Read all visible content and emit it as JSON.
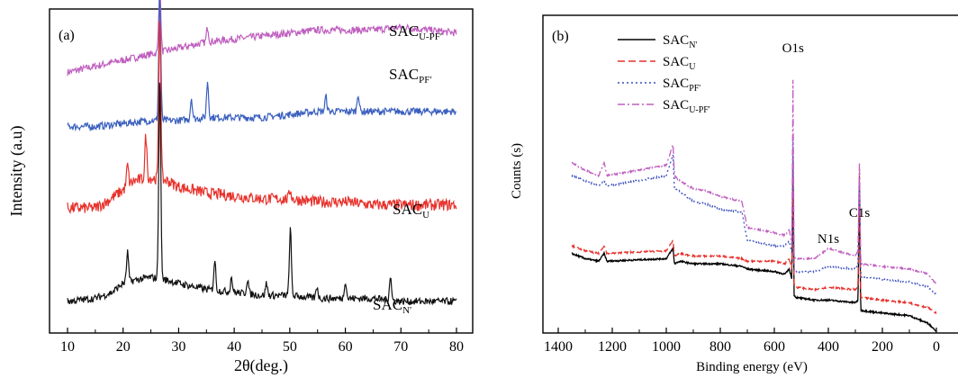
{
  "chart_data": [
    {
      "panel": "(a)",
      "type": "line",
      "xlabel": "2θ(deg.)",
      "ylabel": "Intensity (a.u)",
      "xlim": [
        10,
        80
      ],
      "xticks": [
        "10",
        "20",
        "30",
        "40",
        "50",
        "60",
        "70",
        "80"
      ],
      "y_ticks_shown": false,
      "series": [
        {
          "name": "SAC",
          "name_sub": "U-PF′",
          "color": "#bf5fbf",
          "baseline": 0.82,
          "x": [
            10,
            15,
            20,
            25,
            30,
            35,
            40,
            45,
            50,
            55,
            60,
            65,
            70,
            75,
            80
          ],
          "y": [
            0.82,
            0.84,
            0.86,
            0.88,
            0.9,
            0.92,
            0.93,
            0.94,
            0.95,
            0.96,
            0.96,
            0.96,
            0.97,
            0.96,
            0.95
          ],
          "peaks": [
            [
              26.6,
              0.23
            ],
            [
              35.2,
              0.05
            ]
          ]
        },
        {
          "name": "SAC",
          "name_sub": "PF′",
          "color": "#3a5fbf",
          "baseline": 0.64,
          "x": [
            10,
            15,
            20,
            25,
            30,
            35,
            40,
            45,
            50,
            55,
            60,
            65,
            70,
            75,
            80
          ],
          "y": [
            0.64,
            0.64,
            0.65,
            0.66,
            0.66,
            0.67,
            0.67,
            0.67,
            0.68,
            0.69,
            0.69,
            0.69,
            0.69,
            0.69,
            0.69
          ],
          "peaks": [
            [
              26.6,
              0.42
            ],
            [
              32.3,
              0.07
            ],
            [
              35.2,
              0.12
            ],
            [
              56.5,
              0.05
            ],
            [
              62.3,
              0.06
            ]
          ]
        },
        {
          "name": "SAC",
          "name_sub": "U",
          "color": "#e8312b",
          "baseline": 0.38,
          "x": [
            10,
            15,
            17,
            20,
            22,
            25,
            28,
            30,
            35,
            40,
            45,
            50,
            55,
            60,
            65,
            70,
            75,
            80
          ],
          "y": [
            0.37,
            0.37,
            0.39,
            0.43,
            0.46,
            0.47,
            0.46,
            0.44,
            0.42,
            0.41,
            0.4,
            0.4,
            0.39,
            0.39,
            0.38,
            0.38,
            0.38,
            0.38
          ],
          "peaks": [
            [
              20.8,
              0.07
            ],
            [
              24.1,
              0.14
            ],
            [
              26.6,
              0.55
            ],
            [
              50.1,
              0.03
            ]
          ]
        },
        {
          "name": "SAC",
          "name_sub": "N′",
          "color": "#111111",
          "baseline": 0.06,
          "x": [
            10,
            15,
            18,
            20,
            22,
            25,
            28,
            30,
            35,
            40,
            45,
            50,
            55,
            60,
            65,
            70,
            75,
            80
          ],
          "y": [
            0.06,
            0.07,
            0.09,
            0.12,
            0.13,
            0.14,
            0.13,
            0.12,
            0.1,
            0.09,
            0.08,
            0.08,
            0.07,
            0.07,
            0.07,
            0.06,
            0.06,
            0.06
          ],
          "peaks": [
            [
              20.8,
              0.1
            ],
            [
              26.6,
              0.67
            ],
            [
              36.5,
              0.1
            ],
            [
              39.5,
              0.05
            ],
            [
              42.4,
              0.05
            ],
            [
              45.8,
              0.04
            ],
            [
              50.1,
              0.22
            ],
            [
              54.9,
              0.04
            ],
            [
              60.0,
              0.06
            ],
            [
              68.1,
              0.08
            ]
          ]
        }
      ]
    },
    {
      "panel": "(b)",
      "type": "line",
      "xlabel": "Binding energy (eV)",
      "ylabel": "Counts (s)",
      "xlim": [
        1400,
        0
      ],
      "xticks": [
        "1400",
        "1200",
        "1000",
        "800",
        "600",
        "400",
        "200",
        "0"
      ],
      "y_ticks_shown": false,
      "legend_position": "top-left",
      "annotations": [
        {
          "text": "O1s",
          "x": 531
        },
        {
          "text": "N1s",
          "x": 400
        },
        {
          "text": "C1s",
          "x": 285
        }
      ],
      "series": [
        {
          "name": "SAC",
          "name_sub": "N'",
          "color": "#000000",
          "dash": "solid",
          "x": [
            1350,
            1300,
            1250,
            1230,
            1220,
            1000,
            975,
            970,
            950,
            900,
            850,
            800,
            720,
            700,
            600,
            560,
            545,
            535,
            531,
            527,
            520,
            450,
            400,
            300,
            290,
            285,
            280,
            200,
            100,
            30,
            0
          ],
          "y": [
            0.3,
            0.28,
            0.27,
            0.3,
            0.27,
            0.28,
            0.32,
            0.26,
            0.27,
            0.26,
            0.26,
            0.26,
            0.25,
            0.24,
            0.23,
            0.22,
            0.24,
            0.2,
            0.65,
            0.14,
            0.13,
            0.12,
            0.12,
            0.11,
            0.12,
            0.55,
            0.08,
            0.07,
            0.06,
            0.03,
            0.0
          ]
        },
        {
          "name": "SAC",
          "name_sub": "U",
          "color": "#e8312b",
          "dash": "dashed",
          "x": [
            1350,
            1300,
            1250,
            1230,
            1220,
            1000,
            975,
            970,
            950,
            900,
            850,
            800,
            720,
            700,
            600,
            560,
            545,
            535,
            531,
            527,
            520,
            450,
            400,
            300,
            290,
            285,
            280,
            200,
            100,
            30,
            0
          ],
          "y": [
            0.33,
            0.31,
            0.3,
            0.33,
            0.3,
            0.31,
            0.35,
            0.29,
            0.3,
            0.29,
            0.29,
            0.29,
            0.28,
            0.27,
            0.27,
            0.26,
            0.28,
            0.24,
            0.68,
            0.18,
            0.17,
            0.16,
            0.17,
            0.16,
            0.17,
            0.6,
            0.13,
            0.12,
            0.11,
            0.09,
            0.07
          ]
        },
        {
          "name": "SAC",
          "name_sub": "PF'",
          "color": "#3a4fbf",
          "dash": "dotted",
          "x": [
            1350,
            1300,
            1250,
            1230,
            1220,
            1000,
            975,
            970,
            950,
            900,
            850,
            800,
            720,
            700,
            600,
            560,
            545,
            535,
            531,
            527,
            520,
            450,
            400,
            300,
            290,
            285,
            280,
            200,
            100,
            30,
            0
          ],
          "y": [
            0.6,
            0.58,
            0.56,
            0.58,
            0.56,
            0.6,
            0.68,
            0.55,
            0.54,
            0.5,
            0.49,
            0.47,
            0.46,
            0.35,
            0.33,
            0.33,
            0.35,
            0.3,
            0.75,
            0.24,
            0.23,
            0.23,
            0.25,
            0.24,
            0.26,
            0.62,
            0.21,
            0.2,
            0.19,
            0.17,
            0.14
          ]
        },
        {
          "name": "SAC",
          "name_sub": "U-PF'",
          "color": "#bf5fbf",
          "dash": "dashdot",
          "x": [
            1350,
            1300,
            1250,
            1230,
            1220,
            1000,
            975,
            970,
            950,
            900,
            850,
            800,
            720,
            700,
            600,
            560,
            545,
            535,
            531,
            527,
            520,
            450,
            400,
            300,
            290,
            285,
            280,
            200,
            100,
            30,
            0
          ],
          "y": [
            0.65,
            0.62,
            0.6,
            0.65,
            0.6,
            0.64,
            0.72,
            0.6,
            0.58,
            0.55,
            0.54,
            0.52,
            0.5,
            0.4,
            0.38,
            0.37,
            0.39,
            0.34,
            0.97,
            0.29,
            0.28,
            0.28,
            0.32,
            0.29,
            0.31,
            0.65,
            0.26,
            0.25,
            0.24,
            0.22,
            0.18
          ]
        }
      ]
    }
  ]
}
